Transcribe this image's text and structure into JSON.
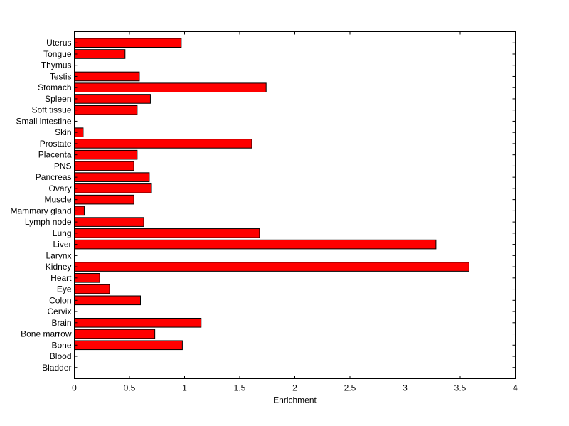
{
  "chart_data": {
    "type": "bar",
    "orientation": "horizontal",
    "categories": [
      "Bladder",
      "Blood",
      "Bone",
      "Bone marrow",
      "Brain",
      "Cervix",
      "Colon",
      "Eye",
      "Heart",
      "Kidney",
      "Larynx",
      "Liver",
      "Lung",
      "Lymph node",
      "Mammary gland",
      "Muscle",
      "Ovary",
      "Pancreas",
      "PNS",
      "Placenta",
      "Prostate",
      "Skin",
      "Small intestine",
      "Soft tissue",
      "Spleen",
      "Stomach",
      "Testis",
      "Thymus",
      "Tongue",
      "Uterus"
    ],
    "values": [
      0,
      0,
      0.98,
      0.73,
      1.15,
      0,
      0.6,
      0.32,
      0.23,
      3.58,
      0,
      3.28,
      1.68,
      0.63,
      0.09,
      0.54,
      0.7,
      0.68,
      0.54,
      0.57,
      1.61,
      0.08,
      0,
      0.57,
      0.69,
      1.74,
      0.59,
      0,
      0.46,
      0.97
    ],
    "xlabel": "Enrichment",
    "ylabel": "",
    "title": "",
    "xlim": [
      0,
      4
    ],
    "xticks": [
      0,
      0.5,
      1,
      1.5,
      2,
      2.5,
      3,
      3.5,
      4
    ],
    "xtick_labels": [
      "0",
      "0.5",
      "1",
      "1.5",
      "2",
      "2.5",
      "3",
      "3.5",
      "4"
    ],
    "grid": false,
    "bar_color": "#ff0000",
    "edge_color": "#000000"
  }
}
